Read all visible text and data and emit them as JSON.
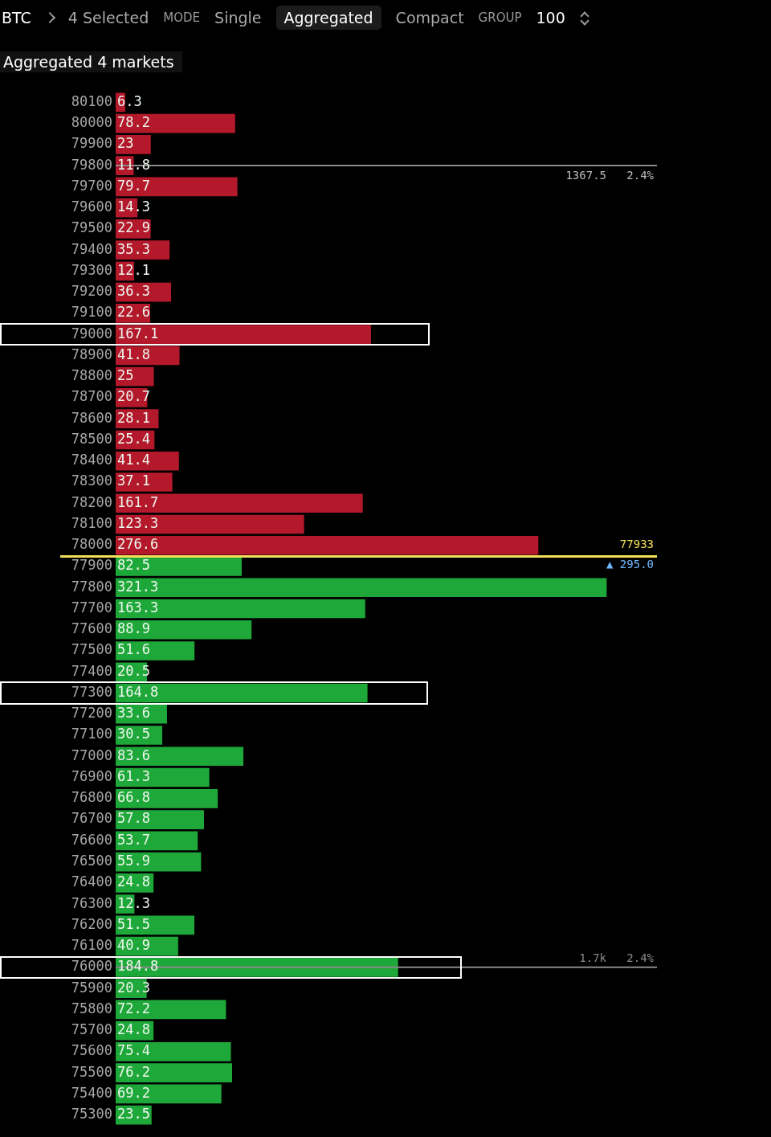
{
  "chart_data": {
    "type": "bar",
    "orientation": "horizontal",
    "title": "Aggregated 4 markets",
    "annotations": [
      "BTC",
      "4 Selected",
      "MODE",
      "Single",
      "Aggregated",
      "Compact",
      "GROUP",
      "100",
      "▲ 295.0",
      "77933",
      "1367.5   2.4%",
      "1.7k   2.4%"
    ],
    "categories": [
      "80100",
      "80000",
      "79900",
      "79800",
      "79700",
      "79600",
      "79500",
      "79400",
      "79300",
      "79200",
      "79100",
      "79000",
      "78900",
      "78800",
      "78700",
      "78600",
      "78500",
      "78400",
      "78300",
      "78200",
      "78100",
      "78000",
      "77900",
      "77800",
      "77700",
      "77600",
      "77500",
      "77400",
      "77300",
      "77200",
      "77100",
      "77000",
      "76900",
      "76800",
      "76700",
      "76600",
      "76500",
      "76400",
      "76300",
      "76200",
      "76100",
      "76000",
      "75900",
      "75800",
      "75700",
      "75600",
      "75500",
      "75400",
      "75300"
    ],
    "values": [
      6.3,
      78.2,
      23.0,
      11.8,
      79.7,
      14.3,
      22.9,
      35.3,
      12.1,
      36.3,
      22.6,
      167.1,
      41.8,
      25.0,
      20.7,
      28.1,
      25.4,
      41.4,
      37.1,
      161.7,
      123.3,
      276.6,
      82.5,
      321.3,
      163.3,
      88.9,
      51.6,
      20.5,
      164.8,
      33.6,
      30.5,
      83.6,
      61.3,
      66.8,
      57.8,
      53.7,
      55.9,
      24.8,
      12.3,
      51.5,
      40.9,
      184.8,
      20.3,
      72.2,
      24.8,
      75.4,
      76.2,
      69.2,
      23.5
    ],
    "colors": [
      "#b3192b",
      "#b3192b",
      "#b3192b",
      "#b3192b",
      "#b3192b",
      "#b3192b",
      "#b3192b",
      "#b3192b",
      "#b3192b",
      "#b3192b",
      "#b3192b",
      "#b3192b",
      "#b3192b",
      "#b3192b",
      "#b3192b",
      "#b3192b",
      "#b3192b",
      "#b3192b",
      "#b3192b",
      "#b3192b",
      "#b3192b",
      "#b3192b",
      "#1fa83a",
      "#1fa83a",
      "#1fa83a",
      "#1fa83a",
      "#1fa83a",
      "#1fa83a",
      "#1fa83a",
      "#1fa83a",
      "#1fa83a",
      "#1fa83a",
      "#1fa83a",
      "#1fa83a",
      "#1fa83a",
      "#1fa83a",
      "#1fa83a",
      "#1fa83a",
      "#1fa83a",
      "#1fa83a",
      "#1fa83a",
      "#1fa83a",
      "#1fa83a",
      "#1fa83a",
      "#1fa83a",
      "#1fa83a",
      "#1fa83a",
      "#1fa83a",
      "#1fa83a"
    ],
    "data_labels": true,
    "ref_lines": [
      {
        "axis": "y",
        "value": "79800",
        "color": "#8a8a8a"
      },
      {
        "axis": "y",
        "value": "76000",
        "color": "#8a8a8a"
      }
    ],
    "legend": false
  }
}
